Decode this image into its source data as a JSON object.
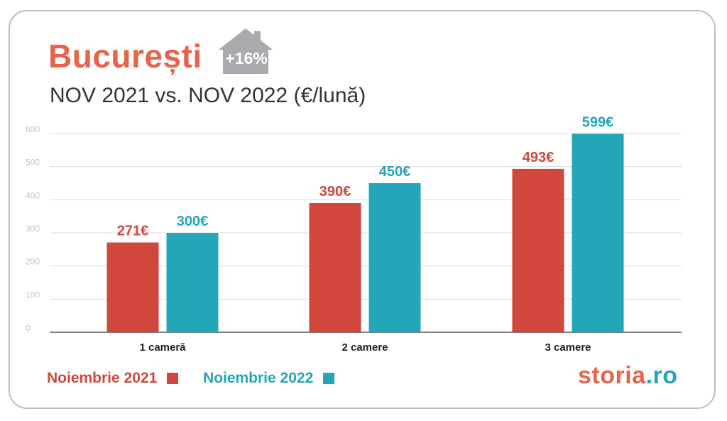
{
  "header": {
    "city": "București",
    "badge": "+16%",
    "subtitle": "NOV 2021 vs. NOV 2022 (€/lună)"
  },
  "legend": [
    {
      "label": "Noiembrie 2021",
      "color": "#d2473b"
    },
    {
      "label": "Noiembrie 2022",
      "color": "#23a6b8"
    }
  ],
  "brand": {
    "part1": "storia",
    "part2": ".ro"
  },
  "chart_data": {
    "type": "bar",
    "categories": [
      "1 cameră",
      "2 camere",
      "3 camere"
    ],
    "series": [
      {
        "name": "Noiembrie 2021",
        "values": [
          271,
          390,
          493
        ],
        "labels": [
          "271€",
          "390€",
          "493€"
        ],
        "color": "#d2473b"
      },
      {
        "name": "Noiembrie 2022",
        "values": [
          300,
          450,
          599
        ],
        "labels": [
          "300€",
          "450€",
          "599€"
        ],
        "color": "#23a6b8"
      }
    ],
    "ylim": [
      0,
      600
    ],
    "yticks": [
      0,
      100,
      200,
      300,
      400,
      500,
      600
    ],
    "grid": true,
    "legend_position": "bottom-left"
  }
}
